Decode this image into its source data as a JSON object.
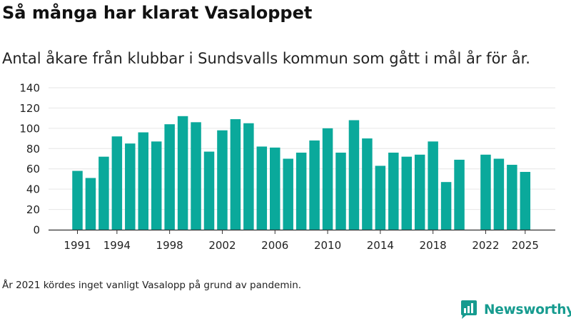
{
  "title": "Så många har klarat Vasaloppet",
  "subtitle": "Antal åkare från klubbar i Sundsvalls kommun som gått i mål år för år.",
  "note": "År 2021 kördes inget vanligt Vasalopp på grund av pandemin.",
  "brand": {
    "name": "Newsworthy",
    "icon": "newsworthy-logo-icon"
  },
  "colors": {
    "bar": "#0aa99b",
    "grid": "#e6e6e6",
    "axis": "#333333",
    "text": "#222222",
    "brand": "#169b8f"
  },
  "chart_data": {
    "type": "bar",
    "categories": [
      1991,
      1992,
      1993,
      1994,
      1995,
      1996,
      1997,
      1998,
      1999,
      2000,
      2001,
      2002,
      2003,
      2004,
      2005,
      2006,
      2007,
      2008,
      2009,
      2010,
      2011,
      2012,
      2013,
      2014,
      2015,
      2016,
      2017,
      2018,
      2019,
      2020,
      2021,
      2022,
      2023,
      2024,
      2025
    ],
    "values": [
      58,
      51,
      72,
      92,
      85,
      96,
      87,
      104,
      112,
      106,
      77,
      98,
      109,
      105,
      82,
      81,
      70,
      76,
      88,
      100,
      76,
      108,
      90,
      63,
      76,
      72,
      74,
      87,
      47,
      69,
      null,
      74,
      70,
      64,
      57
    ],
    "x_tick_labels": [
      "1991",
      "1994",
      "1998",
      "2002",
      "2006",
      "2010",
      "2014",
      "2018",
      "2022",
      "2025"
    ],
    "y_ticks": [
      "0",
      "20",
      "40",
      "60",
      "80",
      "100",
      "120",
      "140"
    ],
    "ylim": [
      0,
      140
    ],
    "grid": true,
    "legend": "none"
  }
}
